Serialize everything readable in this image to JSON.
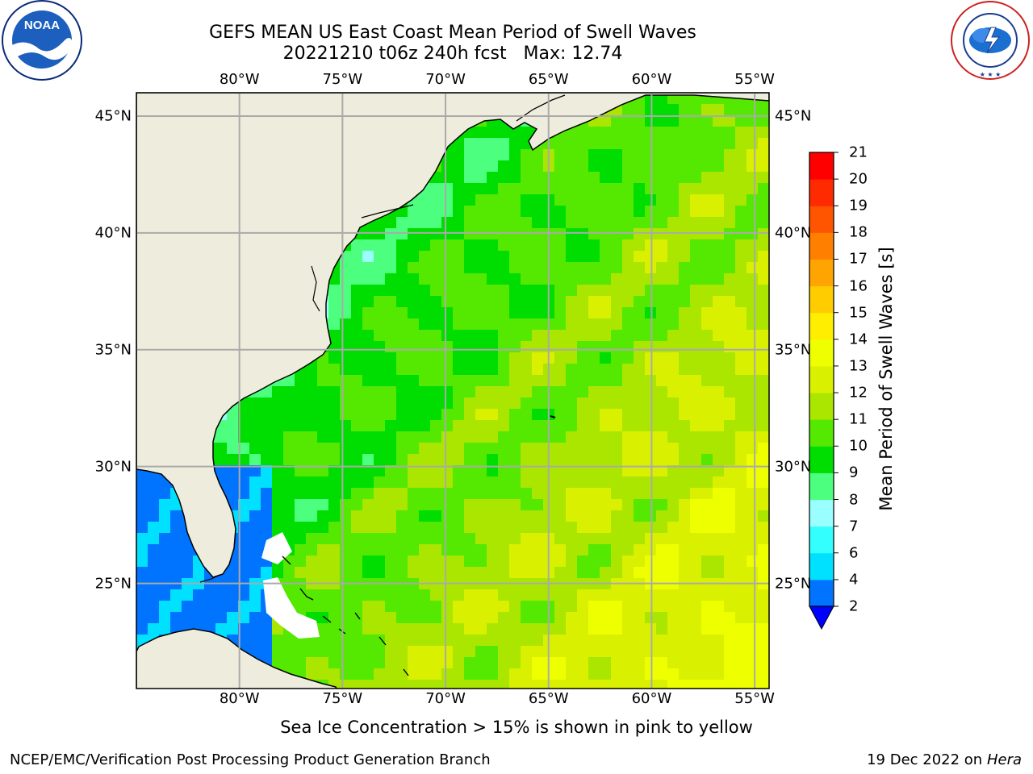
{
  "header": {
    "title_line1": "GEFS MEAN US East Coast Mean Period of Swell Waves",
    "title_line2": "20221210 t06z 240h fcst   Max: 12.74"
  },
  "logos": {
    "left": {
      "name": "noaa-logo",
      "text": "NOAA",
      "ring_text": "NATIONAL OCEANIC AND ATMOSPHERIC ADMINISTRATION · U.S. DEPARTMENT OF COMMERCE"
    },
    "right": {
      "name": "nws-logo",
      "ring_text": "NATIONAL WEATHER SERVICE"
    }
  },
  "map": {
    "lon_labels": [
      "80°W",
      "75°W",
      "70°W",
      "65°W",
      "60°W",
      "55°W"
    ],
    "lat_labels": [
      "45°N",
      "40°N",
      "35°N",
      "30°N",
      "25°N"
    ],
    "lon_values": [
      -80,
      -75,
      -70,
      -65,
      -60,
      -55
    ],
    "lat_values": [
      45,
      40,
      35,
      30,
      25
    ],
    "extent": {
      "lon_min": -85,
      "lon_max": -54.3,
      "lat_min": 20.5,
      "lat_max": 46
    },
    "colors": {
      "land": "#eeeddd",
      "grid": "#aaaaaa",
      "coast": "#000000",
      "missing": "#ffffff"
    }
  },
  "colorbar": {
    "label": "Mean Period of Swell Waves [s]",
    "tick_labels": [
      "2",
      "4",
      "6",
      "7",
      "8",
      "9",
      "10",
      "11",
      "12",
      "13",
      "14",
      "15",
      "16",
      "17",
      "18",
      "19",
      "20",
      "21"
    ],
    "colors": [
      "#0073ff",
      "#00e1ff",
      "#33ffff",
      "#99ffff",
      "#4dff7f",
      "#00dd00",
      "#55e800",
      "#aae600",
      "#d9f000",
      "#eeff00",
      "#ffee00",
      "#ffcc00",
      "#ffa400",
      "#ff8000",
      "#ff5500",
      "#ff2a00",
      "#ff0000"
    ],
    "under_color": "#0000ff"
  },
  "note": "Sea Ice Concentration > 15% is shown in pink to yellow",
  "footer": {
    "left": "NCEP/EMC/Verification Post Processing Product Generation Branch",
    "date": "19 Dec 2022 on",
    "machine": "Hera"
  }
}
